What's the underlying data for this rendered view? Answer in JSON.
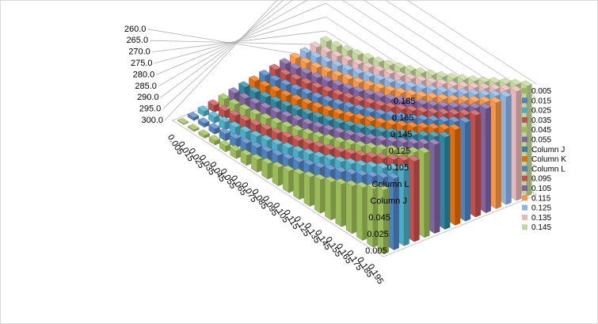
{
  "chart_data": {
    "type": "bar",
    "subtype": "3d-column",
    "title": "",
    "xlabel": "",
    "ylabel": "",
    "zlim": [
      260,
      300
    ],
    "z_ticks": [
      "300.0",
      "295.0",
      "290.0",
      "285.0",
      "280.0",
      "275.0",
      "270.0",
      "265.0",
      "260.0"
    ],
    "categories": [
      "0.005",
      "0.015",
      "0.025",
      "0.035",
      "0.045",
      "0.055",
      "0.065",
      "0.075",
      "0.085",
      "0.095",
      "0.105",
      "0.115",
      "0.125",
      "0.135",
      "0.145",
      "0.155",
      "0.165",
      "0.175",
      "0.185",
      "0.195"
    ],
    "depth_ticks": [
      "0.185",
      "0.165",
      "0.145",
      "0.125",
      "0.105",
      "Column L",
      "Column J",
      "0.045",
      "0.025",
      "0.005"
    ],
    "legend_position": "right",
    "grid": true,
    "series": [
      {
        "name": "0.005",
        "color": "#9bbb59",
        "values": [
          260.3,
          260.6,
          261.0,
          261.5,
          262.1,
          262.8,
          263.6,
          264.5,
          265.5,
          266.6,
          267.8,
          269.1,
          270.5,
          272.0,
          273.6,
          275.3,
          277.1,
          279.0,
          281.0,
          283.1
        ]
      },
      {
        "name": "0.015",
        "color": "#4f81bd",
        "values": [
          261.0,
          261.4,
          261.9,
          262.5,
          263.2,
          264.0,
          264.9,
          265.9,
          267.0,
          268.2,
          269.5,
          270.9,
          272.4,
          274.0,
          275.7,
          277.5,
          279.4,
          281.4,
          283.5,
          285.7
        ]
      },
      {
        "name": "0.025",
        "color": "#4bacc6",
        "values": [
          261.8,
          262.2,
          262.8,
          263.4,
          264.2,
          265.0,
          266.0,
          267.0,
          268.2,
          269.4,
          270.8,
          272.2,
          273.8,
          275.4,
          277.2,
          279.0,
          281.0,
          283.0,
          285.2,
          287.4
        ]
      },
      {
        "name": "0.035",
        "color": "#c0504d",
        "values": [
          262.5,
          263.0,
          263.6,
          264.3,
          265.1,
          266.0,
          267.0,
          268.1,
          269.3,
          270.6,
          272.0,
          273.5,
          275.1,
          276.8,
          278.6,
          280.5,
          282.5,
          284.6,
          286.8,
          289.0
        ]
      },
      {
        "name": "0.045",
        "color": "#9bbb59",
        "values": [
          263.2,
          263.7,
          264.3,
          265.0,
          265.9,
          266.8,
          267.9,
          269.0,
          270.3,
          271.6,
          273.1,
          274.6,
          276.3,
          278.0,
          279.9,
          281.8,
          283.9,
          286.0,
          288.2,
          290.5
        ]
      },
      {
        "name": "0.055",
        "color": "#8064a2",
        "values": [
          263.9,
          264.4,
          265.1,
          265.8,
          266.7,
          267.7,
          268.8,
          269.9,
          271.2,
          272.6,
          274.1,
          275.7,
          277.4,
          279.2,
          281.1,
          283.1,
          285.2,
          287.4,
          289.7,
          292.0
        ]
      },
      {
        "name": "Column J",
        "color": "#31859c",
        "values": [
          264.6,
          265.1,
          265.8,
          266.6,
          267.5,
          268.5,
          269.6,
          270.8,
          272.1,
          273.6,
          275.1,
          276.7,
          278.5,
          280.3,
          282.2,
          284.3,
          286.4,
          288.6,
          290.9,
          293.2
        ]
      },
      {
        "name": "Column K",
        "color": "#e46c0a",
        "values": [
          265.2,
          265.8,
          266.5,
          267.3,
          268.2,
          269.3,
          270.4,
          271.7,
          273.0,
          274.5,
          276.1,
          277.8,
          279.5,
          281.4,
          283.4,
          285.4,
          287.6,
          289.8,
          292.1,
          294.4
        ]
      },
      {
        "name": "Column L",
        "color": "#4f81bd",
        "values": [
          265.8,
          266.4,
          267.2,
          268.0,
          269.0,
          270.0,
          271.2,
          272.5,
          273.9,
          275.4,
          277.0,
          278.7,
          280.5,
          282.4,
          284.4,
          286.5,
          288.7,
          290.9,
          293.2,
          295.5
        ]
      },
      {
        "name": "0.095",
        "color": "#c0504d",
        "values": [
          266.4,
          267.0,
          267.8,
          268.7,
          269.7,
          270.8,
          272.0,
          273.3,
          274.7,
          276.3,
          277.9,
          279.6,
          281.5,
          283.4,
          285.4,
          287.5,
          289.7,
          292.0,
          294.3,
          296.6
        ]
      },
      {
        "name": "0.105",
        "color": "#8064a2",
        "values": [
          267.0,
          267.6,
          268.4,
          269.3,
          270.4,
          271.5,
          272.7,
          274.1,
          275.5,
          277.1,
          278.7,
          280.5,
          282.3,
          284.3,
          286.3,
          288.4,
          290.6,
          292.9,
          295.2,
          297.5
        ]
      },
      {
        "name": "0.115",
        "color": "#f79646",
        "values": [
          267.5,
          268.2,
          269.0,
          270.0,
          271.0,
          272.2,
          273.4,
          274.8,
          276.3,
          277.8,
          279.5,
          281.3,
          283.1,
          285.1,
          287.1,
          289.2,
          291.4,
          293.7,
          296.0,
          298.2
        ]
      },
      {
        "name": "0.125",
        "color": "#8db3e2",
        "values": [
          268.0,
          268.7,
          269.6,
          270.5,
          271.6,
          272.8,
          274.1,
          275.4,
          276.9,
          278.5,
          280.2,
          282.0,
          283.9,
          285.8,
          287.9,
          290.0,
          292.2,
          294.4,
          296.7,
          298.8
        ]
      },
      {
        "name": "0.135",
        "color": "#e6b9b8",
        "values": [
          268.5,
          269.2,
          270.1,
          271.1,
          272.2,
          273.4,
          274.7,
          276.1,
          277.6,
          279.2,
          280.9,
          282.7,
          284.6,
          286.5,
          288.6,
          290.7,
          292.9,
          295.1,
          297.3,
          299.3
        ]
      },
      {
        "name": "0.145",
        "color": "#c3d69b",
        "values": [
          269.0,
          269.7,
          270.6,
          271.6,
          272.7,
          273.9,
          275.2,
          276.7,
          278.2,
          279.8,
          281.5,
          283.3,
          285.2,
          287.2,
          289.2,
          291.3,
          293.5,
          295.6,
          297.8,
          299.7
        ]
      }
    ]
  }
}
